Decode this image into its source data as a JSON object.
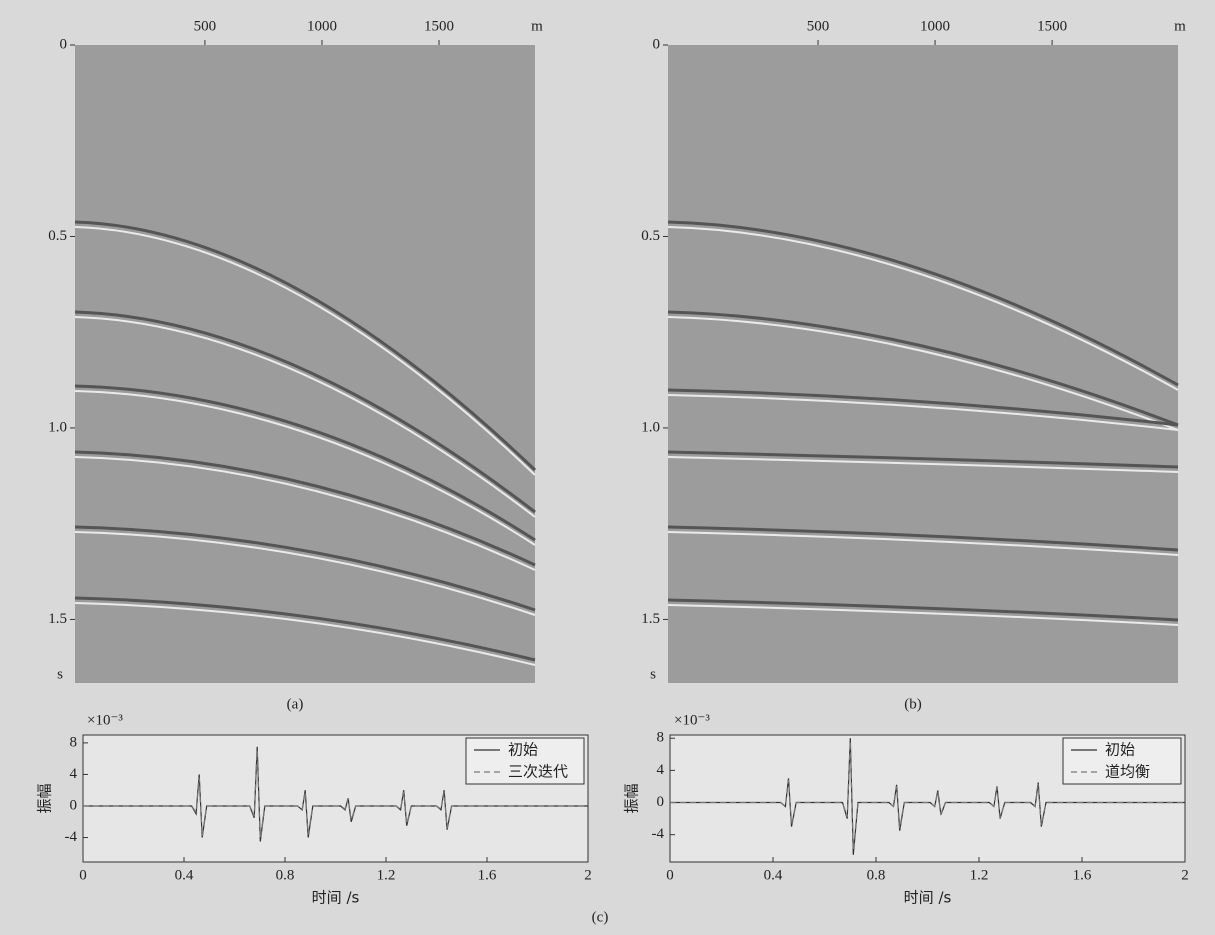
{
  "chart_data": [
    {
      "type": "seismic",
      "label": "(a)",
      "x_unit": "m",
      "y_unit": "s",
      "xlim": [
        -55,
        1910
      ],
      "xticks": [
        500,
        1000,
        1500
      ],
      "ylim": [
        0,
        1.666
      ],
      "yticks": [
        0,
        0.5,
        {
          "value": 1,
          "label": "1.0"
        },
        1.5
      ]
    },
    {
      "type": "seismic",
      "label": "(b)",
      "x_unit": "m",
      "y_unit": "s",
      "xlim": [
        -141,
        2038
      ],
      "xticks": [
        500,
        1000,
        1500
      ],
      "ylim": [
        0,
        1.666
      ],
      "yticks": [
        0,
        0.5,
        {
          "value": 1,
          "label": "1.0"
        },
        1.5
      ]
    },
    {
      "type": "line",
      "exponent": "×10⁻³",
      "xlabel": "时间 /s",
      "ylabel": "振幅",
      "xlim": [
        0,
        2
      ],
      "xticks": [
        0,
        0.4,
        0.8,
        1.2,
        1.6,
        2
      ],
      "ylim": [
        -7.1,
        9
      ],
      "yticks": [
        -4,
        0,
        4,
        8
      ],
      "x": [
        0,
        0.43,
        0.448,
        0.46,
        0.472,
        0.49,
        0.66,
        0.678,
        0.69,
        0.702,
        0.72,
        0.85,
        0.868,
        0.88,
        0.892,
        0.91,
        1.02,
        1.038,
        1.05,
        1.062,
        1.08,
        1.24,
        1.258,
        1.27,
        1.282,
        1.3,
        1.4,
        1.418,
        1.43,
        1.442,
        1.46,
        2
      ],
      "series": [
        {
          "name": "初始",
          "color": "#333333",
          "style": "solid",
          "values": [
            0,
            0,
            -1,
            4,
            -4,
            0,
            0,
            -1.5,
            7.5,
            -4.5,
            0,
            0,
            -0.5,
            2,
            -4,
            0,
            0,
            -0.5,
            1,
            -2,
            0,
            0,
            -0.5,
            2,
            -2.5,
            0,
            0,
            -0.5,
            2,
            -3,
            0,
            0
          ]
        },
        {
          "name": "三次迭代",
          "color": "#777777",
          "style": "dashed",
          "values": [
            0,
            0,
            -0.8,
            3.6,
            -3.8,
            0,
            0,
            -1.3,
            7,
            -4.2,
            0,
            0,
            -0.5,
            1.8,
            -3.6,
            0,
            0,
            -0.4,
            1,
            -1.8,
            0,
            0,
            -0.4,
            1.8,
            -2.3,
            0,
            0,
            -0.4,
            1.8,
            -2.8,
            0,
            0
          ]
        }
      ]
    },
    {
      "type": "line",
      "exponent": "×10⁻³",
      "xlabel": "时间 /s",
      "ylabel": "振幅",
      "xlim": [
        0,
        2
      ],
      "xticks": [
        0,
        0.4,
        0.8,
        1.2,
        1.6,
        2
      ],
      "ylim": [
        -7.4,
        8.4
      ],
      "yticks": [
        -4,
        0,
        4,
        8
      ],
      "x": [
        0,
        0.43,
        0.448,
        0.46,
        0.472,
        0.49,
        0.67,
        0.688,
        0.7,
        0.712,
        0.73,
        0.85,
        0.868,
        0.88,
        0.892,
        0.91,
        1.01,
        1.028,
        1.04,
        1.052,
        1.07,
        1.24,
        1.258,
        1.27,
        1.282,
        1.3,
        1.4,
        1.418,
        1.43,
        1.442,
        1.46,
        2
      ],
      "series": [
        {
          "name": "初始",
          "color": "#333333",
          "style": "solid",
          "values": [
            0,
            0,
            -0.5,
            3,
            -3,
            0,
            0,
            -2,
            8,
            -6.5,
            0,
            0,
            -0.5,
            2.2,
            -3.5,
            0,
            0,
            -0.5,
            1.5,
            -1.5,
            0,
            0,
            -0.5,
            2,
            -2,
            0,
            0,
            -0.5,
            2.5,
            -3,
            0,
            0
          ]
        },
        {
          "name": "道均衡",
          "color": "#777777",
          "style": "dashed",
          "values": [
            0,
            0,
            -0.5,
            2.8,
            -2.8,
            0,
            0,
            -1.8,
            7.6,
            -6,
            0,
            0,
            -0.5,
            2,
            -3.2,
            0,
            0,
            -0.5,
            1.4,
            -1.4,
            0,
            0,
            -0.5,
            1.9,
            -1.9,
            0,
            0,
            -0.5,
            2.3,
            -2.8,
            0,
            0
          ]
        }
      ]
    }
  ],
  "caption": "(c)"
}
